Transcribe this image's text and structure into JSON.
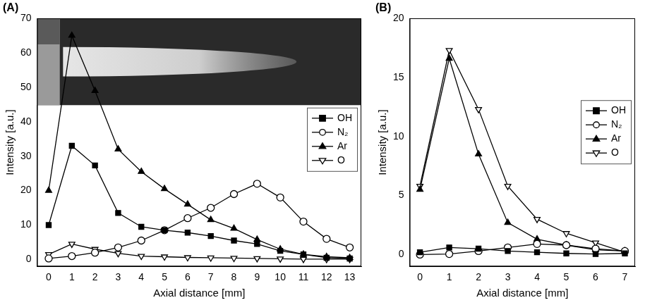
{
  "chart_data": [
    {
      "type": "line",
      "title": "(A)",
      "x_label": "Axial distance [mm]",
      "y_label": "Intensity [a.u.]",
      "x": [
        0,
        1,
        2,
        3,
        4,
        5,
        6,
        7,
        8,
        9,
        10,
        11,
        12,
        13
      ],
      "series": [
        {
          "name": "OH",
          "color": "#000000",
          "marker": "square",
          "values": [
            10,
            33,
            27.3,
            13.5,
            9.5,
            8.5,
            7.8,
            6.8,
            5.5,
            4.5,
            2.5,
            1.5,
            0.5,
            0.3
          ]
        },
        {
          "name": "N₂",
          "color": "#000000",
          "marker": "circle-open",
          "values": [
            0.3,
            1,
            2,
            3.5,
            5.5,
            8.5,
            12,
            15,
            19,
            22,
            18,
            11,
            6,
            3.5
          ]
        },
        {
          "name": "Ar",
          "color": "#000000",
          "marker": "triangle",
          "values": [
            20,
            65,
            49,
            32,
            25.5,
            20.5,
            16,
            11.5,
            9,
            5.8,
            3,
            1.5,
            0.8,
            0.5
          ]
        },
        {
          "name": "O",
          "color": "#000000",
          "marker": "triangle-down-open",
          "values": [
            1.5,
            4.5,
            3,
            1.8,
            1,
            0.8,
            0.6,
            0.5,
            0.4,
            0.3,
            0.2,
            0.1,
            0.1,
            0.1
          ]
        }
      ],
      "xlim": [
        -0.5,
        13.5
      ],
      "xticks": [
        0,
        1,
        2,
        3,
        4,
        5,
        6,
        7,
        8,
        9,
        10,
        11,
        12,
        13
      ],
      "ylim": [
        -2,
        70
      ],
      "yticks": [
        0,
        10,
        20,
        30,
        40,
        50,
        60,
        70
      ],
      "grid": false,
      "legend": "upper right"
    },
    {
      "type": "line",
      "title": "(B)",
      "x_label": "Axial distance [mm]",
      "y_label": "Intensity [a.u.]",
      "x": [
        0,
        1,
        2,
        3,
        4,
        5,
        6,
        7
      ],
      "series": [
        {
          "name": "OH",
          "color": "#000000",
          "marker": "square",
          "values": [
            0.2,
            0.6,
            0.5,
            0.3,
            0.2,
            0.1,
            0.05,
            0.1
          ]
        },
        {
          "name": "N₂",
          "color": "#000000",
          "marker": "circle-open",
          "values": [
            0,
            0.05,
            0.3,
            0.6,
            0.9,
            0.8,
            0.5,
            0.3
          ]
        },
        {
          "name": "Ar",
          "color": "#000000",
          "marker": "triangle",
          "values": [
            5.5,
            16.6,
            8.5,
            2.7,
            1.3,
            0.8,
            0.4,
            0.3
          ]
        },
        {
          "name": "O",
          "color": "#000000",
          "marker": "triangle-down-open",
          "values": [
            5.8,
            17.3,
            12.3,
            5.8,
            3,
            1.8,
            1,
            0.2
          ]
        }
      ],
      "xlim": [
        -0.35,
        7.35
      ],
      "xticks": [
        0,
        1,
        2,
        3,
        4,
        5,
        6,
        7
      ],
      "ylim": [
        -1,
        20
      ],
      "yticks": [
        0,
        5,
        10,
        15,
        20
      ],
      "grid": false,
      "legend": "upper right"
    }
  ]
}
